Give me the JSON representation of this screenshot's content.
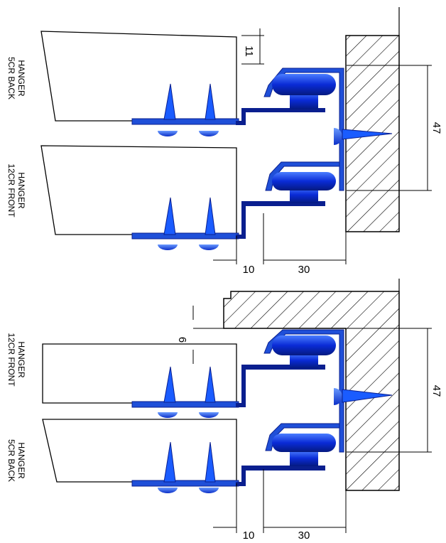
{
  "top_view": {
    "upper_label": [
      "5CR BACK",
      "HANGER"
    ],
    "lower_label": [
      "12CR FRONT",
      "HANGER"
    ],
    "dim_offset": "11",
    "dim_height": "47",
    "dim_left": "10",
    "dim_right": "30"
  },
  "bottom_view": {
    "upper_label": [
      "12CR FRONT",
      "HANGER"
    ],
    "lower_label": [
      "5CR BACK",
      "HANGER"
    ],
    "dim_offset": "6",
    "dim_height": "47",
    "dim_left": "10",
    "dim_right": "30"
  },
  "colors": {
    "hanger_blue": "#1f4fd8",
    "hanger_dark": "#0a1f8f",
    "screw_blue": "#1a5cff",
    "hatch": "#000000"
  }
}
